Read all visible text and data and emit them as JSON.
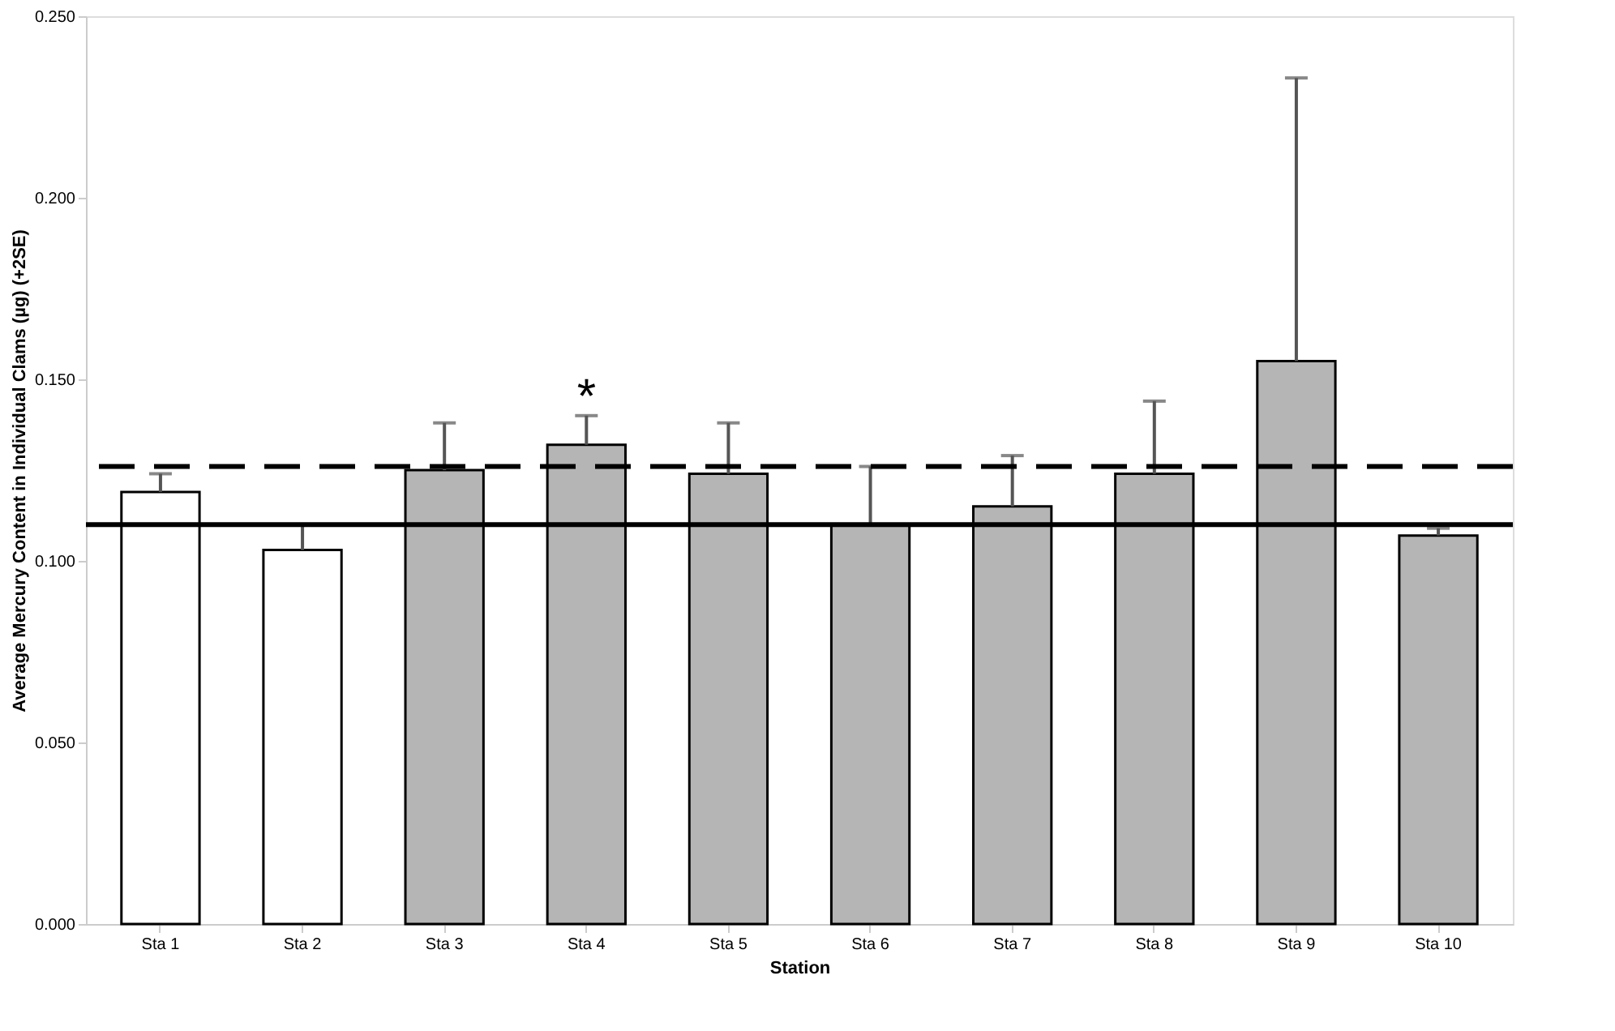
{
  "chart_data": {
    "type": "bar",
    "xlabel": "Station",
    "ylabel": "Average Mercury Content in Individual Clams (µg) (+2SE)",
    "categories": [
      "Sta 1",
      "Sta 2",
      "Sta 3",
      "Sta 4",
      "Sta 5",
      "Sta 6",
      "Sta 7",
      "Sta 8",
      "Sta 9",
      "Sta 10"
    ],
    "values": [
      0.119,
      0.103,
      0.125,
      0.132,
      0.124,
      0.11,
      0.115,
      0.124,
      0.155,
      0.107
    ],
    "colors": [
      "#ffffff",
      "#ffffff",
      "#b5b5b5",
      "#b5b5b5",
      "#b5b5b5",
      "#b5b5b5",
      "#b5b5b5",
      "#b5b5b5",
      "#b5b5b5",
      "#b5b5b5"
    ],
    "errors": [
      [
        0.119,
        0.124
      ],
      [
        0.103,
        0.11
      ],
      [
        0.125,
        0.138
      ],
      [
        0.132,
        0.14
      ],
      [
        0.124,
        0.138
      ],
      [
        0.11,
        0.126
      ],
      [
        0.115,
        0.129
      ],
      [
        0.124,
        0.144
      ],
      [
        0.155,
        0.233
      ],
      [
        0.107,
        0.109
      ]
    ],
    "ylim": [
      0,
      0.25
    ],
    "yticks": [
      {
        "value": 0,
        "label": "0.000"
      },
      {
        "value": 0.05,
        "label": "0.050"
      },
      {
        "value": 0.1,
        "label": "0.100"
      },
      {
        "value": 0.15,
        "label": "0.150"
      },
      {
        "value": 0.2,
        "label": "0.200"
      },
      {
        "value": 0.25,
        "label": "0.250"
      }
    ],
    "ref_lines": [
      {
        "axis": "y",
        "value": 0.126,
        "line_style": "dashed",
        "color": "#000000"
      },
      {
        "axis": "y",
        "value": 0.11,
        "line_style": "solid",
        "color": "#000000"
      }
    ],
    "annotations": [
      {
        "text": "*",
        "x": "Sta 4",
        "y": 0.14
      }
    ],
    "grid": false
  }
}
